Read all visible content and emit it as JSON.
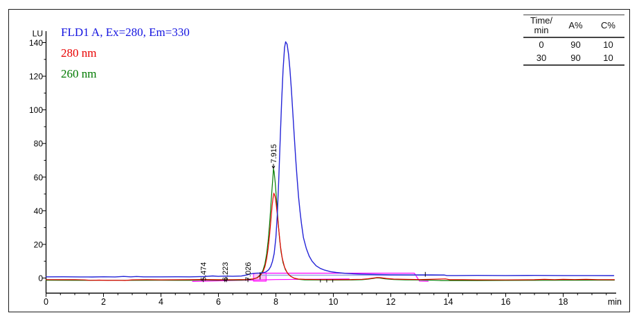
{
  "legend": {
    "items": [
      {
        "id": "fld-signal",
        "label": "FLD1 A, Ex=280, Em=330",
        "color": "#1414e0"
      },
      {
        "id": "uv-280",
        "label": "280 nm",
        "color": "#e80000"
      },
      {
        "id": "uv-260",
        "label": "260 nm",
        "color": "#007a00"
      }
    ]
  },
  "gradient_table": {
    "header": {
      "time_line1": "Time/",
      "time_line2": "min",
      "a": "A%",
      "c": "C%"
    },
    "rows": [
      [
        "0",
        "90",
        "10"
      ],
      [
        "30",
        "90",
        "10"
      ]
    ]
  },
  "chart_data": {
    "type": "line",
    "xlabel": "min",
    "ylabel": "LU",
    "xlim": [
      0,
      19.84
    ],
    "ylim_ticks": [
      0,
      140
    ],
    "x_ticks": [
      0,
      2,
      4,
      6,
      8,
      10,
      12,
      14,
      16,
      18
    ],
    "x_minor_step": 0.5,
    "y_ticks": [
      0,
      20,
      40,
      60,
      80,
      100,
      120,
      140
    ],
    "y_minor_step": 10,
    "grid": false,
    "legend_position": "top-left",
    "peak_labels": [
      {
        "text": "5.474",
        "t": 5.474,
        "at_baseline": true
      },
      {
        "text": "6.223",
        "t": 6.223,
        "at_baseline": true
      },
      {
        "text": "7.026",
        "t": 7.026,
        "at_baseline": true
      },
      {
        "text": "7.915",
        "t": 7.915,
        "at_baseline": false,
        "apex_lu": 65,
        "arrow": true
      }
    ],
    "annotations": {
      "injection_box": {
        "t1": 7.22,
        "t2": 7.66,
        "lu1": -1.9,
        "lu2": 2.9,
        "fill": "#ffc2f4",
        "stroke": "#ff00ff"
      },
      "integration_marks": [
        {
          "t": 5.474,
          "lu1": -2.4,
          "lu2": 0.2
        },
        {
          "t": 6.223,
          "lu1": -2.4,
          "lu2": 0.2
        },
        {
          "t": 6.28,
          "lu1": -2.4,
          "lu2": 0.2
        },
        {
          "t": 7.026,
          "lu1": -2.4,
          "lu2": 0.2
        },
        {
          "t": 7.45,
          "lu1": -0.8,
          "lu2": 3.4
        },
        {
          "t": 9.55,
          "lu1": -2.6,
          "lu2": -0.8
        },
        {
          "t": 9.77,
          "lu1": -2.6,
          "lu2": -0.8
        },
        {
          "t": 9.98,
          "lu1": -2.6,
          "lu2": -0.8
        },
        {
          "t": 13.2,
          "lu1": 0.8,
          "lu2": 3.6
        }
      ]
    },
    "series": [
      {
        "id": "pump-gradient-low",
        "name": "gradient baseline",
        "color": "#ff00ff",
        "width": 1.2,
        "points": [
          [
            5.1,
            -2.0
          ],
          [
            8.0,
            -0.9
          ],
          [
            10.55,
            -0.55
          ]
        ]
      },
      {
        "id": "pump-gradient",
        "name": "gradient step",
        "color": "#ff00ff",
        "width": 1.2,
        "points": [
          [
            7.66,
            2.9
          ],
          [
            12.82,
            2.9
          ],
          [
            12.92,
            0.2
          ],
          [
            13.0,
            -1.8
          ],
          [
            13.3,
            -1.9
          ]
        ]
      },
      {
        "id": "integration-baseline",
        "name": "peak baseline",
        "color": "#9aa4e6",
        "width": 1.6,
        "points": [
          [
            7.5,
            1.7
          ],
          [
            13.85,
            1.7
          ]
        ]
      },
      {
        "id": "trace-260nm",
        "name": "260 nm",
        "color": "#007a00",
        "width": 1.2,
        "points": [
          [
            0,
            -1.3
          ],
          [
            1,
            -1.35
          ],
          [
            2,
            -1.3
          ],
          [
            3,
            -1.35
          ],
          [
            4,
            -1.3
          ],
          [
            5,
            -1.35
          ],
          [
            5.42,
            -1.2
          ],
          [
            5.474,
            -0.8
          ],
          [
            5.53,
            -1.2
          ],
          [
            6,
            -1.3
          ],
          [
            6.223,
            -1.05
          ],
          [
            6.35,
            -1.3
          ],
          [
            6.8,
            -1.25
          ],
          [
            7.0,
            -1.1
          ],
          [
            7.2,
            -0.7
          ],
          [
            7.35,
            0.2
          ],
          [
            7.45,
            1.8
          ],
          [
            7.55,
            4.5
          ],
          [
            7.62,
            8.5
          ],
          [
            7.68,
            14.5
          ],
          [
            7.73,
            22
          ],
          [
            7.78,
            32
          ],
          [
            7.83,
            44
          ],
          [
            7.87,
            54
          ],
          [
            7.9,
            61
          ],
          [
            7.915,
            65
          ],
          [
            7.94,
            63
          ],
          [
            7.98,
            56
          ],
          [
            8.03,
            45
          ],
          [
            8.08,
            33
          ],
          [
            8.13,
            23
          ],
          [
            8.18,
            15.5
          ],
          [
            8.25,
            9
          ],
          [
            8.33,
            5
          ],
          [
            8.42,
            2.6
          ],
          [
            8.52,
            1.0
          ],
          [
            8.65,
            -0.2
          ],
          [
            8.8,
            -0.8
          ],
          [
            9,
            -1.05
          ],
          [
            9.5,
            -1.15
          ],
          [
            10,
            -1.2
          ],
          [
            10.6,
            -1.15
          ],
          [
            11.0,
            -1.0
          ],
          [
            11.2,
            -0.7
          ],
          [
            11.4,
            -0.2
          ],
          [
            11.5,
            0.1
          ],
          [
            11.62,
            0.0
          ],
          [
            11.8,
            -0.5
          ],
          [
            12.1,
            -0.9
          ],
          [
            12.5,
            -1.1
          ],
          [
            13,
            -1.15
          ],
          [
            13.5,
            -1.3
          ],
          [
            13.75,
            -1.5
          ],
          [
            14,
            -1.5
          ],
          [
            15,
            -1.5
          ],
          [
            16,
            -1.4
          ],
          [
            17,
            -1.35
          ],
          [
            18,
            -1.3
          ],
          [
            19,
            -1.25
          ],
          [
            19.78,
            -1.25
          ]
        ]
      },
      {
        "id": "trace-280nm",
        "name": "280 nm",
        "color": "#e80000",
        "width": 1.2,
        "points": [
          [
            0,
            -0.95
          ],
          [
            0.5,
            -1.0
          ],
          [
            1,
            -0.95
          ],
          [
            1.35,
            -1.1
          ],
          [
            1.55,
            -1.35
          ],
          [
            1.85,
            -1.25
          ],
          [
            2.15,
            -1.4
          ],
          [
            2.45,
            -1.3
          ],
          [
            2.75,
            -1.45
          ],
          [
            3.0,
            -1.05
          ],
          [
            3.5,
            -1.0
          ],
          [
            4,
            -1.05
          ],
          [
            5,
            -1.0
          ],
          [
            5.474,
            -0.85
          ],
          [
            6,
            -1.0
          ],
          [
            6.5,
            -0.95
          ],
          [
            7,
            -0.85
          ],
          [
            7.2,
            -0.5
          ],
          [
            7.35,
            0.1
          ],
          [
            7.45,
            1.4
          ],
          [
            7.55,
            3.6
          ],
          [
            7.62,
            6.8
          ],
          [
            7.68,
            11.5
          ],
          [
            7.73,
            17.5
          ],
          [
            7.78,
            25.5
          ],
          [
            7.83,
            35
          ],
          [
            7.87,
            43
          ],
          [
            7.9,
            47.5
          ],
          [
            7.93,
            50.5
          ],
          [
            7.97,
            48.5
          ],
          [
            8.01,
            44
          ],
          [
            8.06,
            36
          ],
          [
            8.11,
            27
          ],
          [
            8.16,
            19
          ],
          [
            8.22,
            12
          ],
          [
            8.3,
            6.5
          ],
          [
            8.4,
            3.0
          ],
          [
            8.5,
            1.2
          ],
          [
            8.62,
            0.0
          ],
          [
            8.78,
            -0.6
          ],
          [
            9,
            -0.8
          ],
          [
            9.5,
            -0.9
          ],
          [
            10,
            -0.95
          ],
          [
            10.6,
            -0.9
          ],
          [
            11.0,
            -0.75
          ],
          [
            11.2,
            -0.45
          ],
          [
            11.4,
            0.0
          ],
          [
            11.52,
            0.3
          ],
          [
            11.65,
            0.2
          ],
          [
            11.85,
            -0.25
          ],
          [
            12.1,
            -0.6
          ],
          [
            12.5,
            -0.8
          ],
          [
            13,
            -0.9
          ],
          [
            13.7,
            -0.6
          ],
          [
            13.9,
            -0.5
          ],
          [
            14.05,
            -1.0
          ],
          [
            14.5,
            -1.0
          ],
          [
            15,
            -1.05
          ],
          [
            16,
            -1.1
          ],
          [
            17,
            -1.0
          ],
          [
            17.35,
            -0.8
          ],
          [
            17.7,
            -0.95
          ],
          [
            18.0,
            -0.8
          ],
          [
            18.4,
            -0.9
          ],
          [
            18.8,
            -0.8
          ],
          [
            19.2,
            -0.95
          ],
          [
            19.78,
            -1.0
          ]
        ]
      },
      {
        "id": "trace-fld",
        "name": "FLD1 A",
        "color": "#2323d7",
        "width": 1.4,
        "points": [
          [
            0,
            0.7
          ],
          [
            0.6,
            0.75
          ],
          [
            1.2,
            0.65
          ],
          [
            1.6,
            0.6
          ],
          [
            2,
            0.75
          ],
          [
            2.4,
            0.65
          ],
          [
            2.7,
            0.95
          ],
          [
            2.95,
            0.7
          ],
          [
            3.15,
            0.9
          ],
          [
            3.4,
            0.7
          ],
          [
            4,
            0.7
          ],
          [
            4.6,
            0.75
          ],
          [
            5,
            0.7
          ],
          [
            5.5,
            0.9
          ],
          [
            5.8,
            1.25
          ],
          [
            6.0,
            1.0
          ],
          [
            6.2,
            1.15
          ],
          [
            6.5,
            1.05
          ],
          [
            6.8,
            1.2
          ],
          [
            7.0,
            1.9
          ],
          [
            7.15,
            2.6
          ],
          [
            7.3,
            2.85
          ],
          [
            7.45,
            2.95
          ],
          [
            7.55,
            3.1
          ],
          [
            7.65,
            3.6
          ],
          [
            7.75,
            4.9
          ],
          [
            7.82,
            6.8
          ],
          [
            7.88,
            9.8
          ],
          [
            7.94,
            14.5
          ],
          [
            8.0,
            24
          ],
          [
            8.05,
            38
          ],
          [
            8.1,
            58
          ],
          [
            8.15,
            82
          ],
          [
            8.2,
            105
          ],
          [
            8.25,
            124
          ],
          [
            8.3,
            137
          ],
          [
            8.34,
            140.5
          ],
          [
            8.39,
            139
          ],
          [
            8.44,
            133
          ],
          [
            8.49,
            124
          ],
          [
            8.54,
            112
          ],
          [
            8.59,
            98
          ],
          [
            8.64,
            84
          ],
          [
            8.69,
            71
          ],
          [
            8.74,
            59
          ],
          [
            8.79,
            48
          ],
          [
            8.84,
            39.5
          ],
          [
            8.89,
            32.5
          ],
          [
            8.96,
            24
          ],
          [
            9.06,
            17.5
          ],
          [
            9.16,
            13
          ],
          [
            9.26,
            10
          ],
          [
            9.4,
            7.3
          ],
          [
            9.55,
            5.7
          ],
          [
            9.7,
            4.7
          ],
          [
            9.9,
            3.8
          ],
          [
            10.1,
            3.3
          ],
          [
            10.4,
            2.8
          ],
          [
            10.7,
            2.5
          ],
          [
            11.0,
            2.3
          ],
          [
            11.5,
            2.05
          ],
          [
            12,
            1.95
          ],
          [
            12.8,
            1.9
          ],
          [
            13.4,
            1.85
          ],
          [
            13.85,
            1.8
          ],
          [
            13.95,
            1.5
          ],
          [
            14.3,
            1.5
          ],
          [
            15,
            1.55
          ],
          [
            16,
            1.5
          ],
          [
            17,
            1.55
          ],
          [
            18,
            1.5
          ],
          [
            19,
            1.5
          ],
          [
            19.76,
            1.45
          ]
        ]
      }
    ]
  }
}
